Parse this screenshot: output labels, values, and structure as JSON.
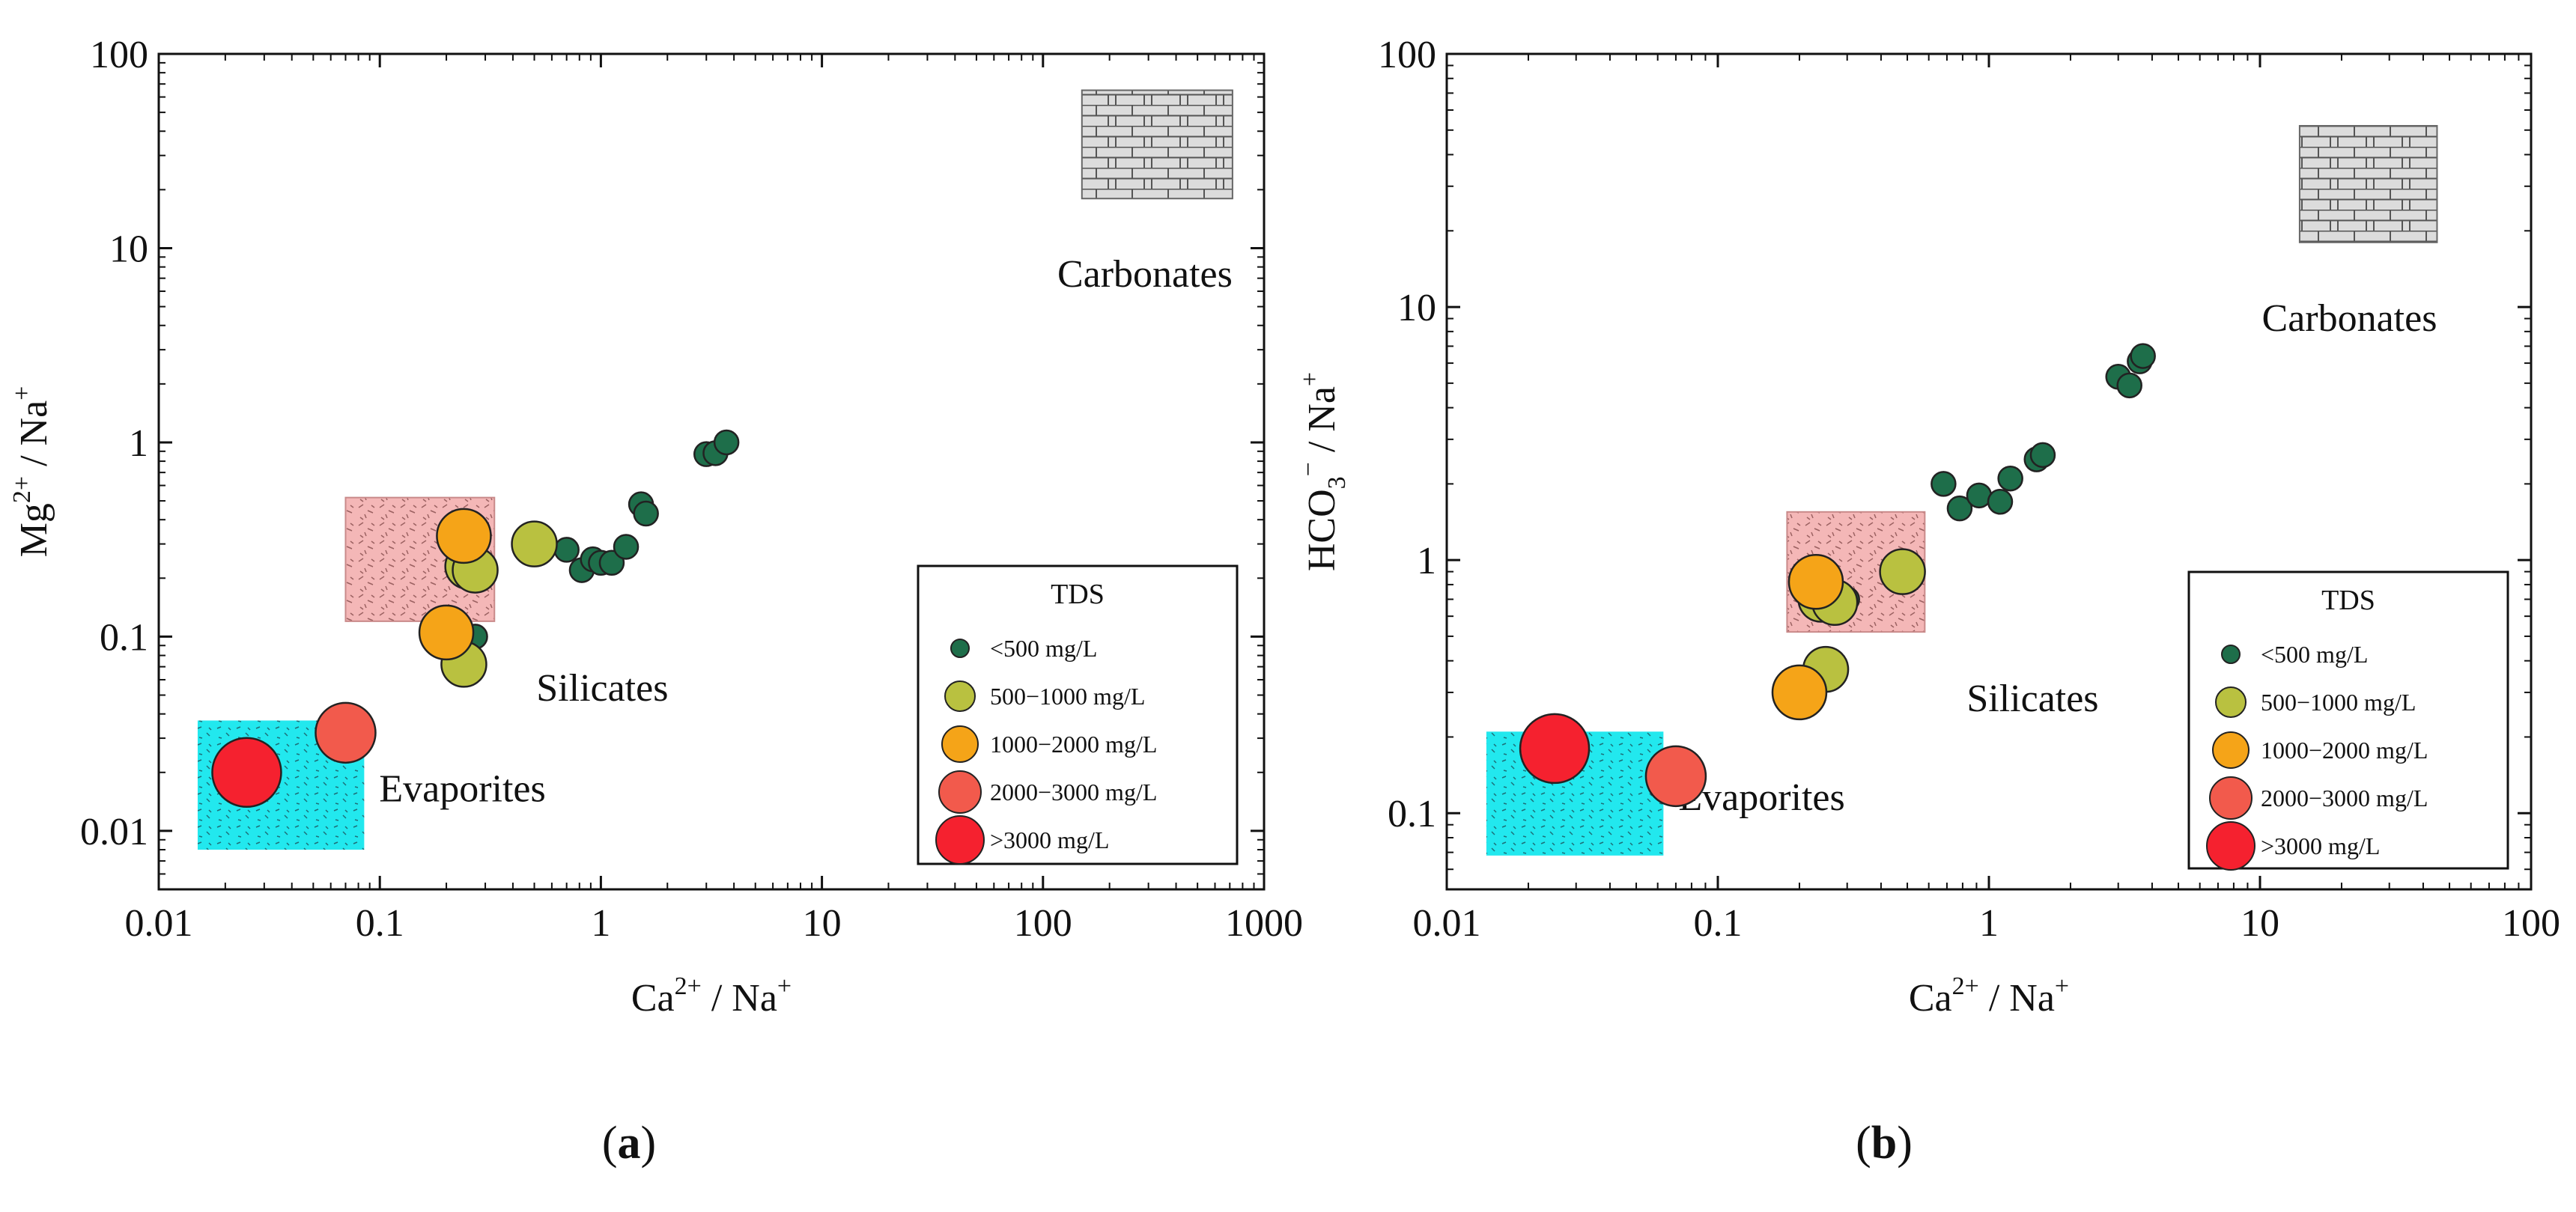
{
  "panels": [
    {
      "caption": "a",
      "xlabel": {
        "base": "Ca",
        "sup": "2+",
        "rest": " / Na",
        "sup2": "+"
      },
      "ylabel": {
        "base": "Mg",
        "sup": "2+",
        "rest": " / Na",
        "sup2": "+"
      },
      "legend_title": "TDS",
      "legend_labels": [
        "<500 mg/L",
        "500−1000 mg/L",
        "1000−2000 mg/L",
        "2000−3000 mg/L",
        ">3000 mg/L"
      ],
      "region_labels": {
        "carbonates": "Carbonates",
        "silicates": "Silicates",
        "evaporites": "Evaporites"
      }
    },
    {
      "caption": "b",
      "xlabel": {
        "base": "Ca",
        "sup": "2+",
        "rest": " / Na",
        "sup2": "+"
      },
      "ylabel": {
        "base": "HCO",
        "sub": "3",
        "sup": "−",
        "rest": " / Na",
        "sup2": "+"
      },
      "legend_title": "TDS",
      "legend_labels": [
        "<500 mg/L",
        "500−1000 mg/L",
        "1000−2000 mg/L",
        "2000−3000 mg/L",
        ">3000 mg/L"
      ],
      "region_labels": {
        "carbonates": "Carbonates",
        "silicates": "Silicates",
        "evaporites": "Evaporites"
      }
    }
  ],
  "tds_classes": [
    {
      "key": "lt500",
      "color": "#1e6e4a"
    },
    {
      "key": "500_1000",
      "color": "#b9c140"
    },
    {
      "key": "1000_2000",
      "color": "#f5a418"
    },
    {
      "key": "2000_3000",
      "color": "#f25a4c"
    },
    {
      "key": "gt3000",
      "color": "#f5212f"
    }
  ],
  "region_colors": {
    "evaporites": "#22e8ee",
    "silicates": "#f4b7b7",
    "carbonates": "#dcdcdc"
  },
  "chart_data": [
    {
      "type": "scatter",
      "xscale": "log",
      "yscale": "log",
      "xlim": [
        0.01,
        1000
      ],
      "ylim": [
        0.005,
        100
      ],
      "xticks": [
        "0.01",
        "0.1",
        "1",
        "10",
        "100",
        "1000"
      ],
      "yticks": [
        "0.01",
        "0.1",
        "1",
        "10",
        "100"
      ],
      "regions": {
        "evaporites": {
          "x": [
            0.015,
            0.085
          ],
          "y": [
            0.008,
            0.037
          ]
        },
        "silicates": {
          "x": [
            0.07,
            0.33
          ],
          "y": [
            0.12,
            0.52
          ]
        },
        "carbonates": {
          "x": [
            150,
            720
          ],
          "y": [
            18,
            65
          ]
        }
      },
      "points": [
        {
          "x": 0.27,
          "y": 0.1,
          "tds": 0
        },
        {
          "x": 0.7,
          "y": 0.28,
          "tds": 0
        },
        {
          "x": 0.82,
          "y": 0.22,
          "tds": 0
        },
        {
          "x": 0.92,
          "y": 0.25,
          "tds": 0
        },
        {
          "x": 1.0,
          "y": 0.24,
          "tds": 0
        },
        {
          "x": 1.12,
          "y": 0.24,
          "tds": 0
        },
        {
          "x": 1.3,
          "y": 0.29,
          "tds": 0
        },
        {
          "x": 1.52,
          "y": 0.48,
          "tds": 0
        },
        {
          "x": 1.6,
          "y": 0.43,
          "tds": 0
        },
        {
          "x": 3.0,
          "y": 0.87,
          "tds": 0
        },
        {
          "x": 3.3,
          "y": 0.88,
          "tds": 0
        },
        {
          "x": 3.7,
          "y": 1.0,
          "tds": 0
        },
        {
          "x": 0.25,
          "y": 0.23,
          "tds": 1
        },
        {
          "x": 0.27,
          "y": 0.22,
          "tds": 1
        },
        {
          "x": 0.24,
          "y": 0.072,
          "tds": 1
        },
        {
          "x": 0.5,
          "y": 0.3,
          "tds": 1
        },
        {
          "x": 0.24,
          "y": 0.33,
          "tds": 2
        },
        {
          "x": 0.2,
          "y": 0.105,
          "tds": 2
        },
        {
          "x": 0.07,
          "y": 0.032,
          "tds": 3
        },
        {
          "x": 0.025,
          "y": 0.02,
          "tds": 4
        }
      ]
    },
    {
      "type": "scatter",
      "xscale": "log",
      "yscale": "log",
      "xlim": [
        0.01,
        100
      ],
      "ylim": [
        0.05,
        100
      ],
      "xticks": [
        "0.01",
        "0.1",
        "1",
        "10",
        "100"
      ],
      "yticks": [
        "0.1",
        "1",
        "10",
        "100"
      ],
      "regions": {
        "evaporites": {
          "x": [
            0.014,
            0.063
          ],
          "y": [
            0.068,
            0.21
          ]
        },
        "silicates": {
          "x": [
            0.18,
            0.58
          ],
          "y": [
            0.52,
            1.55
          ]
        },
        "carbonates": {
          "x": [
            14,
            45
          ],
          "y": [
            18,
            52
          ]
        }
      },
      "points": [
        {
          "x": 0.3,
          "y": 0.7,
          "tds": 0
        },
        {
          "x": 0.68,
          "y": 2.0,
          "tds": 0
        },
        {
          "x": 0.78,
          "y": 1.6,
          "tds": 0
        },
        {
          "x": 0.92,
          "y": 1.8,
          "tds": 0
        },
        {
          "x": 1.1,
          "y": 1.7,
          "tds": 0
        },
        {
          "x": 1.2,
          "y": 2.1,
          "tds": 0
        },
        {
          "x": 1.5,
          "y": 2.5,
          "tds": 0
        },
        {
          "x": 1.58,
          "y": 2.6,
          "tds": 0
        },
        {
          "x": 3.0,
          "y": 5.3,
          "tds": 0
        },
        {
          "x": 3.3,
          "y": 4.9,
          "tds": 0
        },
        {
          "x": 3.6,
          "y": 6.1,
          "tds": 0
        },
        {
          "x": 3.7,
          "y": 6.4,
          "tds": 0
        },
        {
          "x": 0.24,
          "y": 0.7,
          "tds": 1
        },
        {
          "x": 0.27,
          "y": 0.68,
          "tds": 1
        },
        {
          "x": 0.25,
          "y": 0.37,
          "tds": 1
        },
        {
          "x": 0.48,
          "y": 0.9,
          "tds": 1
        },
        {
          "x": 0.23,
          "y": 0.82,
          "tds": 2
        },
        {
          "x": 0.2,
          "y": 0.3,
          "tds": 2
        },
        {
          "x": 0.07,
          "y": 0.14,
          "tds": 3
        },
        {
          "x": 0.025,
          "y": 0.18,
          "tds": 4
        }
      ]
    }
  ]
}
